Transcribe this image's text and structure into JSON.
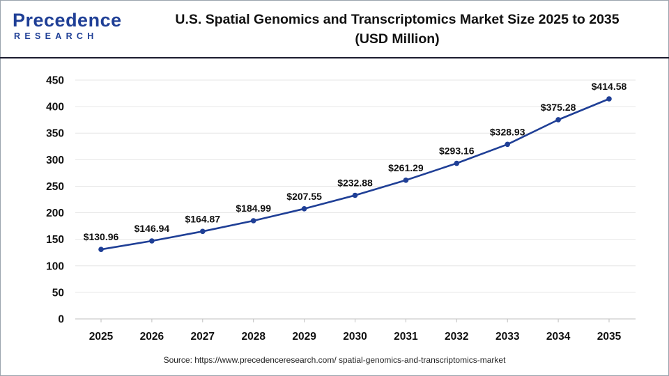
{
  "header": {
    "logo_top": "Precedence",
    "logo_bottom": "RESEARCH",
    "title_line1": "U.S. Spatial Genomics and Transcriptomics Market Size 2025 to 2035",
    "title_line2": "(USD Million)"
  },
  "source": "Source: https://www.precedenceresearch.com/ spatial-genomics-and-transcriptomics-market",
  "colors": {
    "line": "#1f3f96",
    "grid": "#e6e6e6",
    "brand": "#1f3f96"
  },
  "chart_data": {
    "type": "line",
    "title": "U.S. Spatial Genomics and Transcriptomics Market Size 2025 to 2035 (USD Million)",
    "xlabel": "",
    "ylabel": "",
    "x": [
      "2025",
      "2026",
      "2027",
      "2028",
      "2029",
      "2030",
      "2031",
      "2032",
      "2033",
      "2034",
      "2035"
    ],
    "series": [
      {
        "values": [
          130.96,
          146.94,
          164.87,
          184.99,
          207.55,
          232.88,
          261.29,
          293.16,
          328.93,
          375.28,
          414.58
        ],
        "data_labels": [
          "$130.96",
          "$146.94",
          "$164.87",
          "$184.99",
          "$207.55",
          "$232.88",
          "$261.29",
          "$293.16",
          "$328.93",
          "$375.28",
          "$414.58"
        ]
      }
    ],
    "ylim": [
      0,
      450
    ],
    "yticks": [
      0,
      50,
      100,
      150,
      200,
      250,
      300,
      350,
      400,
      450
    ],
    "grid": true,
    "legend": "none"
  }
}
